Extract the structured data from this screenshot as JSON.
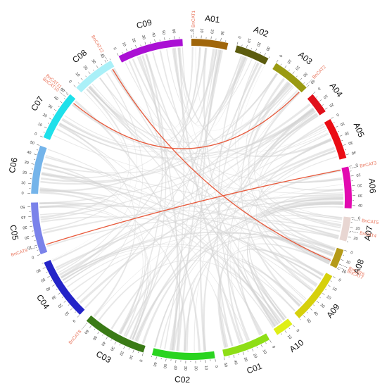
{
  "chromosomes": [
    {
      "name": "A01",
      "length": 38,
      "color": "#a0660b"
    },
    {
      "name": "A02",
      "length": 35,
      "color": "#5c5c0e"
    },
    {
      "name": "A03",
      "length": 40,
      "color": "#9a9a12"
    },
    {
      "name": "A04",
      "length": 22,
      "color": "#e0101a"
    },
    {
      "name": "A05",
      "length": 43,
      "color": "#ea0c14"
    },
    {
      "name": "A06",
      "length": 43,
      "color": "#e20ab0"
    },
    {
      "name": "A07",
      "length": 25,
      "color": "#e8d6d2"
    },
    {
      "name": "A08",
      "length": 20,
      "color": "#b59a18"
    },
    {
      "name": "A09",
      "length": 55,
      "color": "#d6d00c"
    },
    {
      "name": "A10",
      "length": 19,
      "color": "#dfef16"
    },
    {
      "name": "C01",
      "length": 50,
      "color": "#8ede16"
    },
    {
      "name": "C02",
      "length": 65,
      "color": "#2ad420"
    },
    {
      "name": "C03",
      "length": 67,
      "color": "#3a7a16"
    },
    {
      "name": "C04",
      "length": 65,
      "color": "#2424c8"
    },
    {
      "name": "C05",
      "length": 54,
      "color": "#7a82ea"
    },
    {
      "name": "C06",
      "length": 50,
      "color": "#74b4ea"
    },
    {
      "name": "C07",
      "length": 52,
      "color": "#1ee0ea"
    },
    {
      "name": "C08",
      "length": 45,
      "color": "#aaf0f8"
    },
    {
      "name": "C09",
      "length": 68,
      "color": "#aa10d4"
    }
  ],
  "genes": [
    {
      "name": "BnCAT1",
      "chrom": "A01",
      "pos": 2
    },
    {
      "name": "BnCAT2",
      "chrom": "A03",
      "pos": 38
    },
    {
      "name": "BnCAT3",
      "chrom": "A06",
      "pos": 2
    },
    {
      "name": "BnCAT4",
      "chrom": "A07",
      "pos": 14
    },
    {
      "name": "BnCAT5",
      "chrom": "A07",
      "pos": 2
    },
    {
      "name": "BnCAT6",
      "chrom": "A08",
      "pos": 15
    },
    {
      "name": "BnCAT7",
      "chrom": "A08",
      "pos": 18
    },
    {
      "name": "BnCAT8",
      "chrom": "C03",
      "pos": 65
    },
    {
      "name": "BnCAT9",
      "chrom": "C05",
      "pos": 8
    },
    {
      "name": "BnCAT10",
      "chrom": "C07",
      "pos": 47
    },
    {
      "name": "BnCAT11",
      "chrom": "C07",
      "pos": 51
    },
    {
      "name": "BnCAT12",
      "chrom": "C08",
      "pos": 42
    }
  ],
  "highlight_links": [
    {
      "from": "BnCAT2",
      "to": "BnCAT10"
    },
    {
      "from": "BnCAT3",
      "to": "BnCAT9"
    },
    {
      "from": "BnCAT12",
      "to": "BnCAT6"
    }
  ],
  "colors": {
    "background_links": "#d3d3d3",
    "highlight_link": "#e85a3c",
    "gene_label": "#e8735a"
  }
}
